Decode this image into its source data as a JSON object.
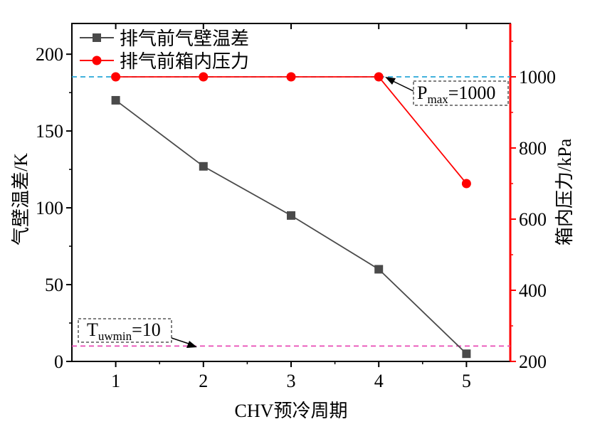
{
  "chart_data": {
    "type": "line",
    "x": [
      1,
      2,
      3,
      4,
      5
    ],
    "xlabel": "CHV预冷周期",
    "ylabel_left": "气壁温差/K",
    "ylabel_right": "箱内压力/kPa",
    "xlim": [
      0.5,
      5.5
    ],
    "ylim_left": [
      0,
      220
    ],
    "ylim_right": [
      200,
      1150
    ],
    "xticks": [
      1,
      2,
      3,
      4,
      5
    ],
    "yticks_left": [
      0,
      50,
      100,
      150,
      200
    ],
    "yticks_right": [
      200,
      400,
      600,
      800,
      1000
    ],
    "grid": false,
    "legend_position": "top-left",
    "series": [
      {
        "name": "排气前气壁温差",
        "axis": "left",
        "marker": "square",
        "color": "#4a4a4a",
        "values": [
          170,
          127,
          95,
          60,
          5
        ]
      },
      {
        "name": "排气前箱内压力",
        "axis": "right",
        "marker": "circle",
        "color": "#ff0000",
        "values": [
          1000,
          1000,
          1000,
          1000,
          700
        ]
      }
    ],
    "reference_lines": [
      {
        "axis": "right",
        "value": 1000,
        "color": "#29a8d8"
      },
      {
        "axis": "left",
        "value": 10,
        "color": "#e84bb5"
      }
    ],
    "annotations": [
      {
        "label": "P",
        "sub": "max",
        "value_text": "=1000"
      },
      {
        "label": "T",
        "sub": "uwmin",
        "value_text": "=10"
      }
    ]
  }
}
